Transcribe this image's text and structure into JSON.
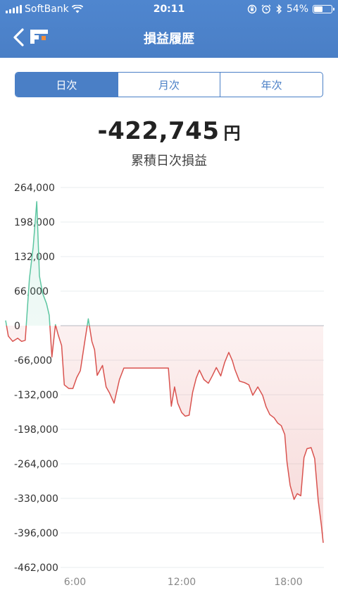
{
  "status_bar": {
    "carrier": "SoftBank",
    "time": "20:11",
    "battery": "54%",
    "battery_level": 0.54
  },
  "nav": {
    "title": "損益履歴",
    "back_icon": "chevron-left-icon",
    "logo_icon": "app-logo-icon"
  },
  "tabs": [
    {
      "label": "日次",
      "active": true
    },
    {
      "label": "月次",
      "active": false
    },
    {
      "label": "年次",
      "active": false
    }
  ],
  "summary": {
    "amount": "-422,745",
    "unit": "円",
    "label": "累積日次損益"
  },
  "colors": {
    "header": "#4a7fc6",
    "positive": "#5cc6a1",
    "negative": "#d9534f"
  },
  "chart_data": {
    "type": "line",
    "y_ticks": [
      "264,000",
      "198,000",
      "132,000",
      "66,000",
      "0",
      "-66,000",
      "-132,000",
      "-198,000",
      "-264,000",
      "-330,000",
      "-396,000",
      "-462,000"
    ],
    "x_ticks": [
      {
        "label": "6:00",
        "x": 6
      },
      {
        "label": "12:00",
        "x": 12
      },
      {
        "label": "18:00",
        "x": 18
      }
    ],
    "ylim": [
      -462000,
      264000
    ],
    "xlim": [
      2.1,
      20.0
    ],
    "grid": true,
    "series": [
      {
        "x": [
          2.1,
          2.25,
          2.5,
          2.78,
          3.0,
          3.2,
          3.44,
          3.65,
          3.85,
          4.0,
          4.18,
          4.4,
          4.55,
          4.7,
          4.9,
          5.05,
          5.25,
          5.4,
          5.65,
          5.88,
          6.1,
          6.3,
          6.55,
          6.75,
          6.95,
          7.1,
          7.25,
          7.55,
          7.75,
          7.95,
          8.2,
          8.5,
          8.75,
          9.0,
          9.22,
          9.5,
          9.8,
          10.0,
          10.3,
          10.55,
          10.8,
          11.0,
          11.25,
          11.42,
          11.6,
          11.78,
          12.0,
          12.2,
          12.42,
          12.62,
          12.82,
          13.0,
          13.25,
          13.5,
          13.72,
          13.95,
          14.2,
          14.42,
          14.65,
          14.85,
          15.0,
          15.25,
          15.55,
          15.78,
          16.0,
          16.28,
          16.55,
          16.75,
          16.96,
          17.2,
          17.4,
          17.6,
          17.8,
          17.92,
          18.1,
          18.32,
          18.5,
          18.7,
          18.88,
          19.05,
          19.28,
          19.48,
          19.68,
          19.85,
          19.96
        ],
        "y": [
          10000,
          -20000,
          -30000,
          -24000,
          -30000,
          -28000,
          90000,
          150000,
          237000,
          95000,
          62000,
          42000,
          20000,
          -60000,
          2000,
          -17000,
          -38000,
          -113000,
          -120000,
          -120000,
          -99000,
          -86000,
          -30000,
          13000,
          -30000,
          -46000,
          -95000,
          -76000,
          -117000,
          -129000,
          -148000,
          -103000,
          -81000,
          -81000,
          -81000,
          -81000,
          -81000,
          -81000,
          -81000,
          -81000,
          -81000,
          -81000,
          -81000,
          -154000,
          -117000,
          -148000,
          -166000,
          -173000,
          -171000,
          -127000,
          -100000,
          -85000,
          -103000,
          -110000,
          -96000,
          -80000,
          -96000,
          -70000,
          -51000,
          -67000,
          -84000,
          -106000,
          -109000,
          -113000,
          -133000,
          -117000,
          -133000,
          -155000,
          -170000,
          -176000,
          -186000,
          -191000,
          -208000,
          -260000,
          -305000,
          -332000,
          -321000,
          -325000,
          -252000,
          -235000,
          -233000,
          -254000,
          -334000,
          -379000,
          -415000
        ]
      }
    ]
  }
}
